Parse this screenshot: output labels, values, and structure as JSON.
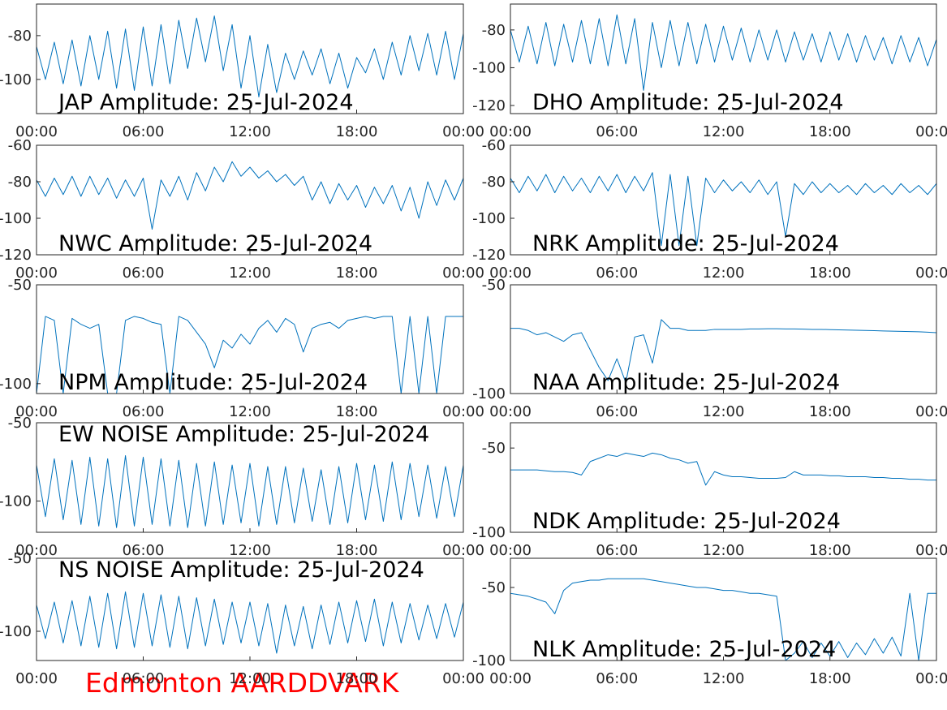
{
  "chart_data": [
    {
      "type": "line",
      "title": "JAP Amplitude: 25-Jul-2024",
      "title_position": "bottom",
      "color": "#0072bd",
      "x": [
        0,
        0.5,
        1,
        1.5,
        2,
        2.5,
        3,
        3.5,
        4,
        4.5,
        5,
        5.5,
        6,
        6.5,
        7,
        7.5,
        8,
        8.5,
        9,
        9.5,
        10,
        10.5,
        11,
        11.5,
        12,
        12.5,
        13,
        13.5,
        14,
        14.5,
        15,
        15.5,
        16,
        16.5,
        17,
        17.5,
        18,
        18.5,
        19,
        19.5,
        20,
        20.5,
        21,
        21.5,
        22,
        22.5,
        23,
        23.5,
        24
      ],
      "values": [
        -85,
        -100,
        -83,
        -102,
        -82,
        -103,
        -80,
        -100,
        -78,
        -104,
        -77,
        -105,
        -76,
        -103,
        -75,
        -102,
        -73,
        -95,
        -72,
        -92,
        -71,
        -96,
        -75,
        -104,
        -80,
        -108,
        -84,
        -106,
        -88,
        -100,
        -87,
        -98,
        -86,
        -102,
        -88,
        -104,
        -90,
        -97,
        -86,
        -100,
        -83,
        -98,
        -80,
        -96,
        -79,
        -98,
        -78,
        -100,
        -79
      ],
      "xlim": [
        0,
        24
      ],
      "xticks": [
        {
          "value": 0,
          "label": "00:00"
        },
        {
          "value": 6,
          "label": "06:00"
        },
        {
          "value": 12,
          "label": "12:00"
        },
        {
          "value": 18,
          "label": "18:00"
        },
        {
          "value": 24,
          "label": "00:00"
        }
      ],
      "ylim": [
        -115.6,
        -65.6
      ],
      "yticks": [
        -80,
        -100
      ]
    },
    {
      "type": "line",
      "title": "DHO Amplitude: 25-Jul-2024",
      "title_position": "bottom",
      "color": "#0072bd",
      "x": [
        0,
        0.5,
        1,
        1.5,
        2,
        2.5,
        3,
        3.5,
        4,
        4.5,
        5,
        5.5,
        6,
        6.5,
        7,
        7.5,
        8,
        8.5,
        9,
        9.5,
        10,
        10.5,
        11,
        11.5,
        12,
        12.5,
        13,
        13.5,
        14,
        14.5,
        15,
        15.5,
        16,
        16.5,
        17,
        17.5,
        18,
        18.5,
        19,
        19.5,
        20,
        20.5,
        21,
        21.5,
        22,
        22.5,
        23,
        23.5,
        24
      ],
      "values": [
        -80,
        -97,
        -78,
        -98,
        -76,
        -99,
        -77,
        -97,
        -75,
        -98,
        -74,
        -99,
        -72,
        -98,
        -74,
        -112,
        -76,
        -100,
        -75,
        -99,
        -76,
        -98,
        -77,
        -97,
        -78,
        -96,
        -79,
        -97,
        -80,
        -96,
        -80,
        -97,
        -81,
        -96,
        -82,
        -97,
        -81,
        -96,
        -82,
        -97,
        -83,
        -96,
        -84,
        -98,
        -83,
        -97,
        -84,
        -99,
        -85
      ],
      "xlim": [
        0,
        24
      ],
      "xticks": [
        {
          "value": 0,
          "label": "00:00"
        },
        {
          "value": 6,
          "label": "06:00"
        },
        {
          "value": 12,
          "label": "12:00"
        },
        {
          "value": 18,
          "label": "18:00"
        },
        {
          "value": 24,
          "label": "00:00"
        }
      ],
      "ylim": [
        -124.3,
        -66.3
      ],
      "yticks": [
        -80,
        -100,
        -120
      ]
    },
    {
      "type": "line",
      "title": "NWC Amplitude: 25-Jul-2024",
      "title_position": "bottom",
      "color": "#0072bd",
      "x": [
        0,
        0.5,
        1,
        1.5,
        2,
        2.5,
        3,
        3.5,
        4,
        4.5,
        5,
        5.5,
        6,
        6.5,
        7,
        7.5,
        8,
        8.5,
        9,
        9.5,
        10,
        10.5,
        11,
        11.5,
        12,
        12.5,
        13,
        13.5,
        14,
        14.5,
        15,
        15.5,
        16,
        16.5,
        17,
        17.5,
        18,
        18.5,
        19,
        19.5,
        20,
        20.5,
        21,
        21.5,
        22,
        22.5,
        23,
        23.5,
        24
      ],
      "values": [
        -79,
        -88,
        -78,
        -87,
        -77,
        -88,
        -77,
        -87,
        -78,
        -89,
        -79,
        -88,
        -78,
        -106,
        -79,
        -88,
        -77,
        -90,
        -75,
        -85,
        -72,
        -80,
        -69,
        -77,
        -72,
        -78,
        -74,
        -80,
        -76,
        -82,
        -77,
        -90,
        -80,
        -92,
        -81,
        -90,
        -82,
        -94,
        -83,
        -92,
        -82,
        -96,
        -83,
        -100,
        -80,
        -93,
        -79,
        -90,
        -78
      ],
      "xlim": [
        0,
        24
      ],
      "xticks": [
        {
          "value": 0,
          "label": "00:00"
        },
        {
          "value": 6,
          "label": "06:00"
        },
        {
          "value": 12,
          "label": "12:00"
        },
        {
          "value": 18,
          "label": "18:00"
        },
        {
          "value": 24,
          "label": "00:00"
        }
      ],
      "ylim": [
        -120,
        -60
      ],
      "yticks": [
        -60,
        -80,
        -100,
        -120
      ]
    },
    {
      "type": "line",
      "title": "NRK Amplitude: 25-Jul-2024",
      "title_position": "bottom",
      "color": "#0072bd",
      "x": [
        0,
        0.5,
        1,
        1.5,
        2,
        2.5,
        3,
        3.5,
        4,
        4.5,
        5,
        5.5,
        6,
        6.5,
        7,
        7.5,
        8,
        8.5,
        9,
        9.5,
        10,
        10.5,
        11,
        11.5,
        12,
        12.5,
        13,
        13.5,
        14,
        14.5,
        15,
        15.5,
        16,
        16.5,
        17,
        17.5,
        18,
        18.5,
        19,
        19.5,
        20,
        20.5,
        21,
        21.5,
        22,
        22.5,
        23,
        23.5,
        24
      ],
      "values": [
        -78,
        -86,
        -77,
        -85,
        -76,
        -86,
        -77,
        -85,
        -78,
        -86,
        -77,
        -85,
        -76,
        -86,
        -77,
        -85,
        -75,
        -115,
        -76,
        -115,
        -77,
        -115,
        -78,
        -86,
        -79,
        -85,
        -80,
        -86,
        -79,
        -87,
        -80,
        -110,
        -81,
        -87,
        -80,
        -86,
        -81,
        -86,
        -82,
        -87,
        -81,
        -86,
        -82,
        -87,
        -81,
        -86,
        -82,
        -87,
        -81
      ],
      "xlim": [
        0,
        24
      ],
      "xticks": [
        {
          "value": 0,
          "label": "00:00"
        },
        {
          "value": 6,
          "label": "06:00"
        },
        {
          "value": 12,
          "label": "12:00"
        },
        {
          "value": 18,
          "label": "18:00"
        },
        {
          "value": 24,
          "label": "00:00"
        }
      ],
      "ylim": [
        -120,
        -60
      ],
      "yticks": [
        -60,
        -80,
        -100,
        -120
      ]
    },
    {
      "type": "line",
      "title": "NPM Amplitude: 25-Jul-2024",
      "title_position": "bottom",
      "color": "#0072bd",
      "x": [
        0,
        0.5,
        1,
        1.5,
        2,
        2.5,
        3,
        3.5,
        4,
        4.5,
        5,
        5.5,
        6,
        6.5,
        7,
        7.5,
        8,
        8.5,
        9,
        9.5,
        10,
        10.5,
        11,
        11.5,
        12,
        12.5,
        13,
        13.5,
        14,
        14.5,
        15,
        15.5,
        16,
        16.5,
        17,
        17.5,
        18,
        18.5,
        19,
        19.5,
        20,
        20.5,
        21,
        21.5,
        22,
        22.5,
        23,
        23.5,
        24
      ],
      "values": [
        -105,
        -66,
        -68,
        -105,
        -67,
        -70,
        -72,
        -70,
        -105,
        -105,
        -68,
        -66,
        -67,
        -69,
        -70,
        -105,
        -66,
        -68,
        -74,
        -80,
        -92,
        -78,
        -82,
        -75,
        -80,
        -72,
        -68,
        -74,
        -67,
        -70,
        -84,
        -72,
        -70,
        -69,
        -72,
        -68,
        -67,
        -66,
        -67,
        -66,
        -66,
        -105,
        -66,
        -105,
        -66,
        -105,
        -66,
        -66,
        -66
      ],
      "xlim": [
        0,
        24
      ],
      "xticks": [
        {
          "value": 0,
          "label": "00:00"
        },
        {
          "value": 6,
          "label": "06:00"
        },
        {
          "value": 12,
          "label": "12:00"
        },
        {
          "value": 18,
          "label": "18:00"
        },
        {
          "value": 24,
          "label": "00:00"
        }
      ],
      "ylim": [
        -105,
        -50
      ],
      "yticks": [
        -50,
        -100
      ]
    },
    {
      "type": "line",
      "title": "NAA Amplitude: 25-Jul-2024",
      "title_position": "bottom",
      "color": "#0072bd",
      "x": [
        0,
        0.5,
        1,
        1.5,
        2,
        2.5,
        3,
        3.5,
        4,
        4.5,
        5,
        5.5,
        6,
        6.5,
        7,
        7.5,
        8,
        8.5,
        9,
        9.5,
        10,
        10.5,
        11,
        11.5,
        12,
        12.5,
        13,
        13.5,
        14,
        14.5,
        15,
        15.5,
        16,
        16.5,
        17,
        17.5,
        18,
        18.5,
        19,
        19.5,
        20,
        20.5,
        21,
        21.5,
        22,
        22.5,
        23,
        23.5,
        24
      ],
      "values": [
        -70,
        -70,
        -71,
        -73,
        -72,
        -74,
        -76,
        -73,
        -72,
        -80,
        -88,
        -94,
        -84,
        -95,
        -74,
        -73,
        -86,
        -66,
        -70,
        -70,
        -71,
        -71,
        -71,
        -70.5,
        -70.5,
        -70.5,
        -70.5,
        -70.3,
        -70.3,
        -70.2,
        -70.2,
        -70.3,
        -70.3,
        -70.4,
        -70.5,
        -70.5,
        -70.6,
        -70.7,
        -70.8,
        -70.9,
        -71,
        -71.1,
        -71.2,
        -71.3,
        -71.4,
        -71.5,
        -71.6,
        -71.8,
        -72
      ],
      "xlim": [
        0,
        24
      ],
      "xticks": [
        {
          "value": 0,
          "label": "00:00"
        },
        {
          "value": 6,
          "label": "06:00"
        },
        {
          "value": 12,
          "label": "12:00"
        },
        {
          "value": 18,
          "label": "18:00"
        },
        {
          "value": 24,
          "label": "00:00"
        }
      ],
      "ylim": [
        -100,
        -50
      ],
      "yticks": [
        -50,
        -100
      ]
    },
    {
      "type": "line",
      "title": "EW NOISE Amplitude: 25-Jul-2024",
      "title_position": "top",
      "color": "#0072bd",
      "x": [
        0,
        0.5,
        1,
        1.5,
        2,
        2.5,
        3,
        3.5,
        4,
        4.5,
        5,
        5.5,
        6,
        6.5,
        7,
        7.5,
        8,
        8.5,
        9,
        9.5,
        10,
        10.5,
        11,
        11.5,
        12,
        12.5,
        13,
        13.5,
        14,
        14.5,
        15,
        15.5,
        16,
        16.5,
        17,
        17.5,
        18,
        18.5,
        19,
        19.5,
        20,
        20.5,
        21,
        21.5,
        22,
        22.5,
        23,
        23.5,
        24
      ],
      "values": [
        -77,
        -110,
        -73,
        -112,
        -74,
        -115,
        -72,
        -116,
        -73,
        -117,
        -71,
        -116,
        -72,
        -115,
        -73,
        -116,
        -74,
        -117,
        -76,
        -116,
        -75,
        -115,
        -77,
        -114,
        -76,
        -116,
        -78,
        -115,
        -78,
        -114,
        -79,
        -113,
        -80,
        -115,
        -78,
        -114,
        -76,
        -112,
        -77,
        -113,
        -75,
        -112,
        -76,
        -110,
        -77,
        -111,
        -78,
        -110,
        -77
      ],
      "xlim": [
        0,
        24
      ],
      "xticks": [
        {
          "value": 0,
          "label": "00:00"
        },
        {
          "value": 6,
          "label": "06:00"
        },
        {
          "value": 12,
          "label": "12:00"
        },
        {
          "value": 18,
          "label": "18:00"
        },
        {
          "value": 24,
          "label": "00:00"
        }
      ],
      "ylim": [
        -120,
        -50
      ],
      "yticks": [
        -50,
        -100
      ]
    },
    {
      "type": "line",
      "title": "NDK Amplitude: 25-Jul-2024",
      "title_position": "bottom",
      "color": "#0072bd",
      "x": [
        0,
        0.5,
        1,
        1.5,
        2,
        2.5,
        3,
        3.5,
        4,
        4.5,
        5,
        5.5,
        6,
        6.5,
        7,
        7.5,
        8,
        8.5,
        9,
        9.5,
        10,
        10.5,
        11,
        11.5,
        12,
        12.5,
        13,
        13.5,
        14,
        14.5,
        15,
        15.5,
        16,
        16.5,
        17,
        17.5,
        18,
        18.5,
        19,
        19.5,
        20,
        20.5,
        21,
        21.5,
        22,
        22.5,
        23,
        23.5,
        24
      ],
      "values": [
        -63,
        -63,
        -63,
        -63,
        -63.5,
        -64,
        -64,
        -64.5,
        -66,
        -58,
        -56,
        -54,
        -55,
        -53,
        -54,
        -55,
        -53,
        -54,
        -56,
        -57,
        -59,
        -58,
        -72,
        -64,
        -66,
        -67,
        -67,
        -67.5,
        -68,
        -68,
        -68,
        -67.5,
        -64,
        -66,
        -66,
        -66,
        -66.5,
        -66.5,
        -67,
        -67,
        -67,
        -67.5,
        -67.5,
        -68,
        -68,
        -68.5,
        -68.5,
        -69,
        -69
      ],
      "xlim": [
        0,
        24
      ],
      "xticks": [
        {
          "value": 0,
          "label": "00:00"
        },
        {
          "value": 6,
          "label": "06:00"
        },
        {
          "value": 12,
          "label": "12:00"
        },
        {
          "value": 18,
          "label": "18:00"
        },
        {
          "value": 24,
          "label": "00:00"
        }
      ],
      "ylim": [
        -100,
        -35
      ],
      "yticks": [
        -50,
        -100
      ]
    },
    {
      "type": "line",
      "title": "NS NOISE Amplitude: 25-Jul-2024",
      "title_position": "top",
      "color": "#0072bd",
      "x": [
        0,
        0.5,
        1,
        1.5,
        2,
        2.5,
        3,
        3.5,
        4,
        4.5,
        5,
        5.5,
        6,
        6.5,
        7,
        7.5,
        8,
        8.5,
        9,
        9.5,
        10,
        10.5,
        11,
        11.5,
        12,
        12.5,
        13,
        13.5,
        14,
        14.5,
        15,
        15.5,
        16,
        16.5,
        17,
        17.5,
        18,
        18.5,
        19,
        19.5,
        20,
        20.5,
        21,
        21.5,
        22,
        22.5,
        23,
        23.5,
        24
      ],
      "values": [
        -82,
        -105,
        -80,
        -108,
        -79,
        -110,
        -76,
        -111,
        -74,
        -112,
        -73,
        -111,
        -74,
        -110,
        -75,
        -111,
        -76,
        -112,
        -77,
        -110,
        -78,
        -109,
        -80,
        -108,
        -80,
        -110,
        -81,
        -115,
        -82,
        -110,
        -83,
        -112,
        -82,
        -109,
        -80,
        -108,
        -79,
        -107,
        -78,
        -110,
        -80,
        -108,
        -81,
        -106,
        -82,
        -105,
        -81,
        -104,
        -80
      ],
      "xlim": [
        0,
        24
      ],
      "xticks": [
        {
          "value": 0,
          "label": "00:00"
        },
        {
          "value": 6,
          "label": "06:00"
        },
        {
          "value": 12,
          "label": "12:00"
        },
        {
          "value": 18,
          "label": "18:00"
        },
        {
          "value": 24,
          "label": "00:00"
        }
      ],
      "ylim": [
        -120,
        -50
      ],
      "yticks": [
        -50,
        -100
      ]
    },
    {
      "type": "line",
      "title": "NLK Amplitude: 25-Jul-2024",
      "title_position": "bottom",
      "color": "#0072bd",
      "x": [
        0,
        0.5,
        1,
        1.5,
        2,
        2.5,
        3,
        3.5,
        4,
        4.5,
        5,
        5.5,
        6,
        6.5,
        7,
        7.5,
        8,
        8.5,
        9,
        9.5,
        10,
        10.5,
        11,
        11.5,
        12,
        12.5,
        13,
        13.5,
        14,
        14.5,
        15,
        15.5,
        16,
        16.5,
        17,
        17.5,
        18,
        18.5,
        19,
        19.5,
        20,
        20.5,
        21,
        21.5,
        22,
        22.5,
        23,
        23.5,
        24
      ],
      "values": [
        -54,
        -55,
        -56,
        -58,
        -60,
        -68,
        -52,
        -47,
        -46,
        -45,
        -45,
        -44,
        -44,
        -44,
        -44,
        -44,
        -45,
        -46,
        -47,
        -48,
        -49,
        -50,
        -50,
        -51,
        -52,
        -52,
        -53,
        -54,
        -54,
        -55,
        -56,
        -100,
        -95,
        -87,
        -98,
        -88,
        -97,
        -87,
        -98,
        -88,
        -96,
        -85,
        -95,
        -84,
        -97,
        -54,
        -100,
        -54,
        -54
      ],
      "xlim": [
        0,
        24
      ],
      "xticks": [
        {
          "value": 0,
          "label": "00:00"
        },
        {
          "value": 6,
          "label": "06:00"
        },
        {
          "value": 12,
          "label": "12:00"
        },
        {
          "value": 18,
          "label": "18:00"
        },
        {
          "value": 24,
          "label": "00:00"
        }
      ],
      "ylim": [
        -100,
        -30
      ],
      "yticks": [
        -50,
        -100
      ]
    }
  ],
  "footer": "Edmonton AARDDVARK"
}
